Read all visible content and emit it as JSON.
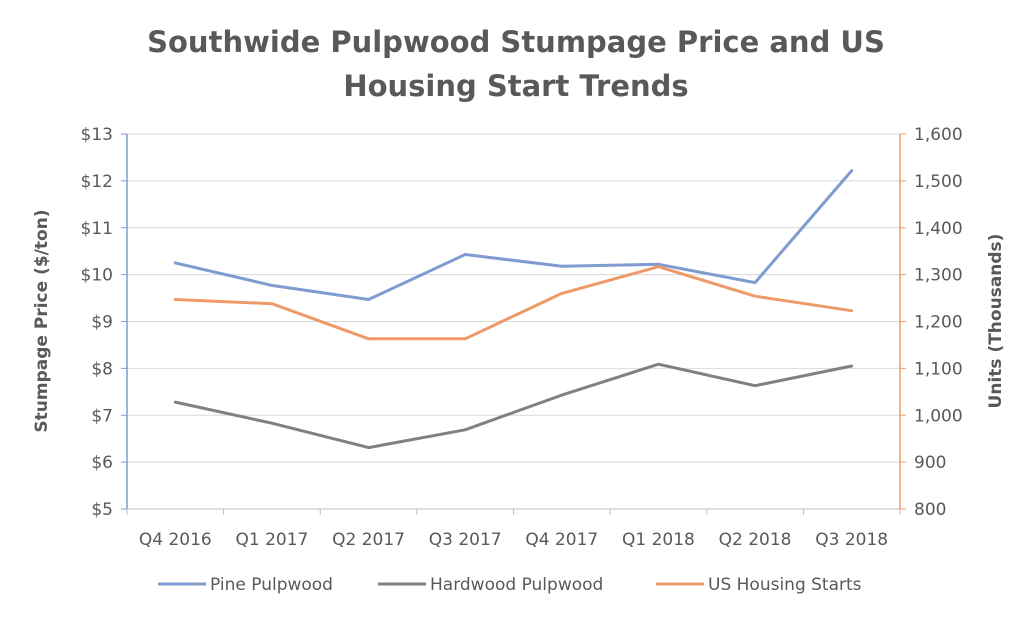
{
  "chart_data": {
    "type": "line",
    "title_lines": [
      "Southwide Pulpwood Stumpage Price and US",
      "Housing Start Trends"
    ],
    "categories": [
      "Q4 2016",
      "Q1 2017",
      "Q2 2017",
      "Q3 2017",
      "Q4 2017",
      "Q1 2018",
      "Q2 2018",
      "Q3 2018"
    ],
    "ylabel_left": "Stumpage Price ($/ton)",
    "ylabel_right": "Units (Thousands)",
    "ylim_left": [
      5,
      13
    ],
    "ylim_right": [
      800,
      1600
    ],
    "yticks_left": [
      "$5",
      "$6",
      "$7",
      "$8",
      "$9",
      "$10",
      "$11",
      "$12",
      "$13"
    ],
    "yticks_right": [
      "800",
      "900",
      "1,000",
      "1,100",
      "1,200",
      "1,300",
      "1,400",
      "1,500",
      "1,600"
    ],
    "grid": true,
    "legend_position": "bottom",
    "series": [
      {
        "name": "Pine Pulpwood",
        "axis": "left",
        "color": "#7f9bd0",
        "values": [
          10.25,
          9.77,
          9.47,
          10.43,
          10.18,
          10.22,
          9.83,
          12.22
        ]
      },
      {
        "name": "Hardwood Pulpwood",
        "axis": "left",
        "color": "#808080",
        "values": [
          7.28,
          6.83,
          6.31,
          6.69,
          7.43,
          8.09,
          7.63,
          8.05
        ]
      },
      {
        "name": "US Housing Starts",
        "axis": "right",
        "color": "#ed9a68",
        "values": [
          1247,
          1238,
          1163,
          1163,
          1260,
          1317,
          1254,
          1223
        ]
      }
    ],
    "axis_colors": {
      "left": "#7f9bd0",
      "right": "#ed9a68",
      "bottom": "#bfbfbf",
      "grid": "#d9d9d9"
    }
  }
}
